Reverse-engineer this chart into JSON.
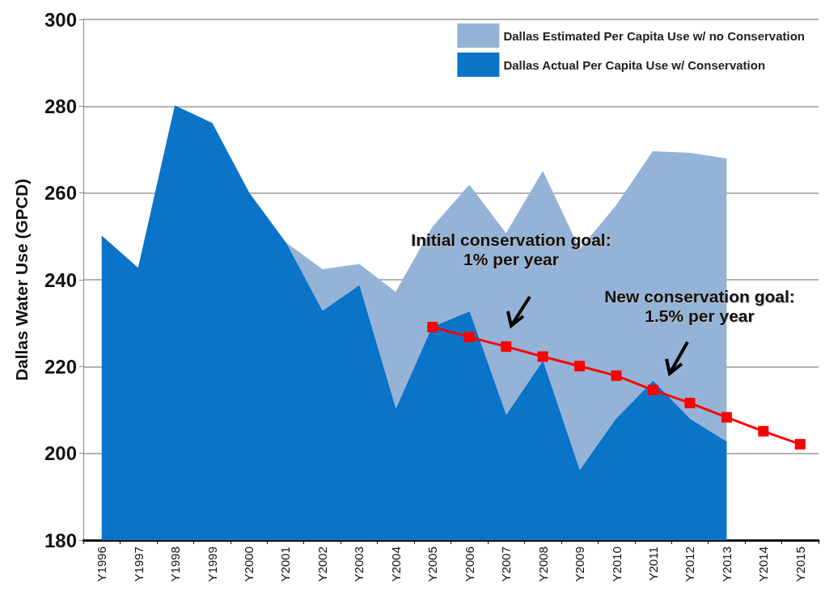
{
  "chart_data": {
    "type": "area",
    "ylabel": "Dallas Water Use (GPCD)",
    "categories": [
      "Y1996",
      "Y1997",
      "Y1998",
      "Y1999",
      "Y2000",
      "Y2001",
      "Y2002",
      "Y2003",
      "Y2004",
      "Y2005",
      "Y2006",
      "Y2007",
      "Y2008",
      "Y2009",
      "Y2010",
      "Y2011",
      "Y2012",
      "Y2013",
      "Y2014",
      "Y2015"
    ],
    "series": [
      {
        "name": "Dallas Estimated Per Capita Use w/ no Conservation",
        "color": "#95b3d7",
        "values": [
          null,
          null,
          null,
          null,
          null,
          248.5,
          242.3,
          243.5,
          237,
          252,
          261.7,
          250.5,
          264.8,
          246.8,
          257,
          269.5,
          269.1,
          267.8,
          null,
          null
        ]
      },
      {
        "name": "Dallas Actual Per Capita Use w/ Conservation",
        "color": "#0a74c9",
        "values": [
          250,
          242.5,
          280,
          276,
          260,
          248.5,
          232.6,
          238.5,
          209.8,
          229,
          232.5,
          208.5,
          221,
          195.8,
          207.8,
          216.5,
          207.8,
          202.5,
          null,
          null
        ]
      },
      {
        "type": "line",
        "color": "#ff0000",
        "marker": "square",
        "line_style": "solid",
        "values": [
          null,
          null,
          null,
          null,
          null,
          null,
          null,
          null,
          null,
          229.1,
          226.8,
          224.6,
          222.3,
          220.1,
          217.9,
          214.6,
          211.6,
          208.3,
          205.1,
          202.1
        ]
      }
    ],
    "ylim": [
      180,
      300
    ],
    "yticks": [
      180,
      200,
      220,
      240,
      260,
      280,
      300
    ],
    "grid": "y",
    "legend": "top right",
    "annotations": [
      "Initial conservation goal:\n1% per year",
      "New conservation goal:\n1.5% per year"
    ]
  }
}
